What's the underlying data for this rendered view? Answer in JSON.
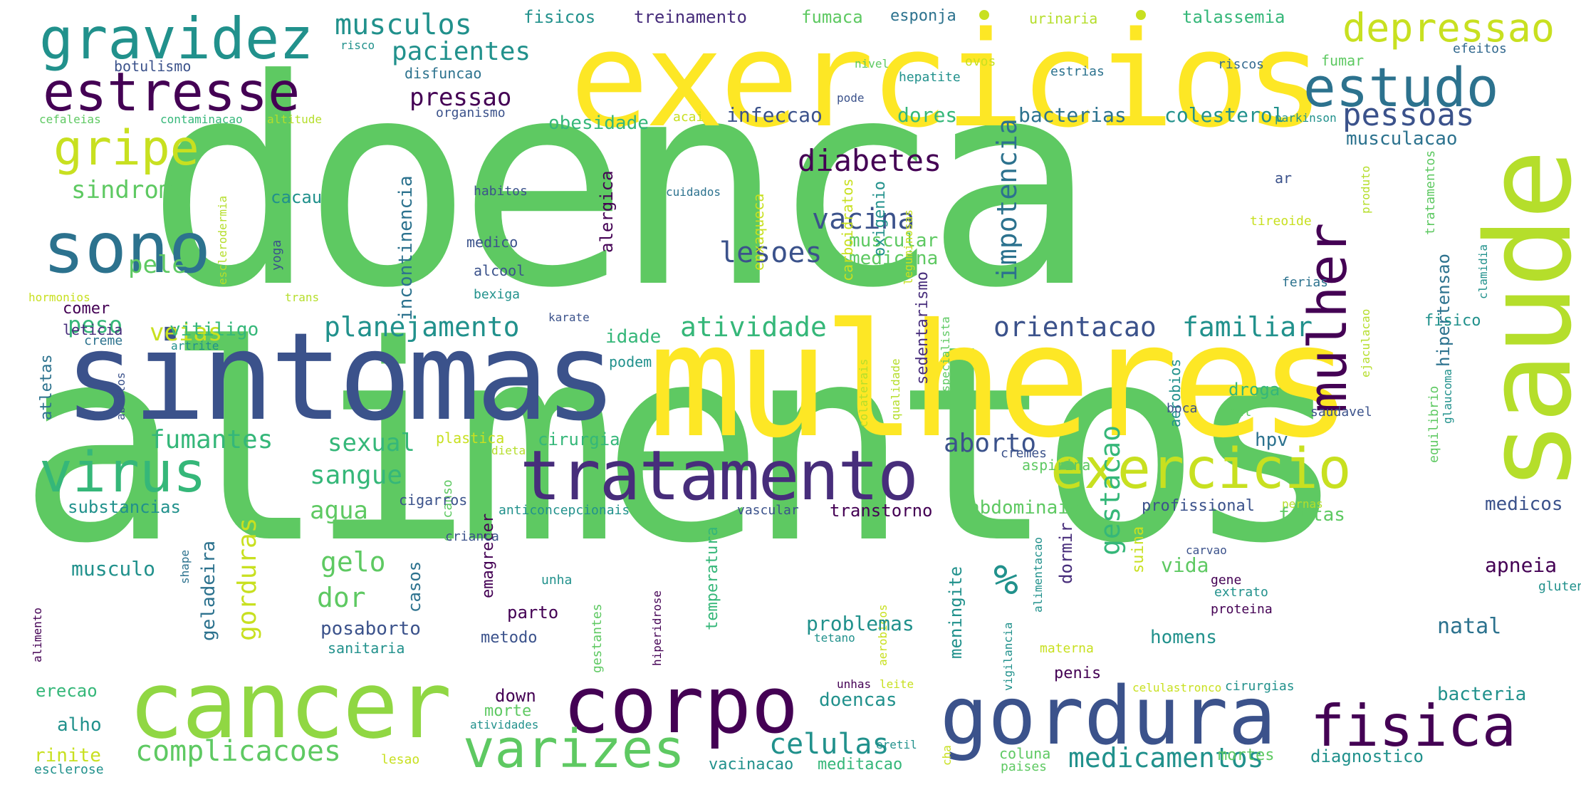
{
  "palette": {
    "background": "#ffffff",
    "colors": [
      "#5ec962",
      "#fde725",
      "#3b528b",
      "#440154",
      "#21918c",
      "#b5de2b",
      "#35b779",
      "#31688e",
      "#2c728e",
      "#472d7b",
      "#90d743",
      "#c8e020"
    ]
  },
  "words": [
    {
      "id": "w0",
      "text": "doenca"
    },
    {
      "id": "w1",
      "text": "alimentos"
    },
    {
      "id": "w2",
      "text": "mulheres"
    },
    {
      "id": "w3",
      "text": "exercicios"
    },
    {
      "id": "w4",
      "text": "sintomas"
    },
    {
      "id": "w5",
      "text": "saude"
    },
    {
      "id": "w6",
      "text": "cancer"
    },
    {
      "id": "w7",
      "text": "gordura"
    },
    {
      "id": "w8",
      "text": "tratamento"
    },
    {
      "id": "w9",
      "text": "corpo"
    },
    {
      "id": "w10",
      "text": "gravidez"
    },
    {
      "id": "w11",
      "text": "sono"
    },
    {
      "id": "w12",
      "text": "estresse"
    },
    {
      "id": "w13",
      "text": "fisica"
    },
    {
      "id": "w14",
      "text": "virus"
    },
    {
      "id": "w15",
      "text": "exercicio"
    },
    {
      "id": "w16",
      "text": "varizes"
    },
    {
      "id": "w17",
      "text": "estudo"
    },
    {
      "id": "w18",
      "text": "mulher"
    },
    {
      "id": "w19",
      "text": "gripe"
    },
    {
      "id": "w20",
      "text": "depressao"
    },
    {
      "id": "w21",
      "text": "%"
    },
    {
      "id": "w22",
      "text": "complicacoes"
    },
    {
      "id": "w23",
      "text": "medicamentos"
    },
    {
      "id": "w24",
      "text": "celulas"
    },
    {
      "id": "w25",
      "text": "planejamento"
    },
    {
      "id": "w26",
      "text": "orientacao"
    },
    {
      "id": "w27",
      "text": "familiar"
    },
    {
      "id": "w28",
      "text": "diabetes"
    },
    {
      "id": "w29",
      "text": "vacina"
    },
    {
      "id": "w30",
      "text": "atividade"
    },
    {
      "id": "w31",
      "text": "fumantes"
    },
    {
      "id": "w32",
      "text": "sexual"
    },
    {
      "id": "w33",
      "text": "sangue"
    },
    {
      "id": "w34",
      "text": "aborto"
    },
    {
      "id": "w35",
      "text": "pessoas"
    },
    {
      "id": "w36",
      "text": "pressao"
    },
    {
      "id": "w37",
      "text": "musculos"
    },
    {
      "id": "w38",
      "text": "pacientes"
    },
    {
      "id": "w39",
      "text": "sindrome"
    },
    {
      "id": "w40",
      "text": "lesoes"
    },
    {
      "id": "w41",
      "text": "impotencia"
    },
    {
      "id": "w42",
      "text": "gestacao"
    },
    {
      "id": "w43",
      "text": "gorduras"
    },
    {
      "id": "w44",
      "text": "gelo"
    },
    {
      "id": "w45",
      "text": "dor"
    },
    {
      "id": "w46",
      "text": "agua"
    },
    {
      "id": "w47",
      "text": "pele"
    },
    {
      "id": "w48",
      "text": "veias"
    },
    {
      "id": "w49",
      "text": "peso"
    },
    {
      "id": "w50",
      "text": "obesidade"
    },
    {
      "id": "w51",
      "text": "colesterol"
    },
    {
      "id": "w52",
      "text": "bacterias"
    },
    {
      "id": "w53",
      "text": "musculacao"
    },
    {
      "id": "w54",
      "text": "incontinencia"
    },
    {
      "id": "w55",
      "text": "infeccao"
    },
    {
      "id": "w56",
      "text": "dores"
    },
    {
      "id": "w57",
      "text": "vitiligo"
    },
    {
      "id": "w58",
      "text": "idade"
    },
    {
      "id": "w59",
      "text": "medicina"
    },
    {
      "id": "w60",
      "text": "muscular"
    },
    {
      "id": "w61",
      "text": "fisicos"
    },
    {
      "id": "w62",
      "text": "treinamento"
    },
    {
      "id": "w63",
      "text": "fumaca"
    },
    {
      "id": "w64",
      "text": "esponja"
    },
    {
      "id": "w65",
      "text": "urinaria"
    },
    {
      "id": "w66",
      "text": "talassemia"
    },
    {
      "id": "w67",
      "text": "risco"
    },
    {
      "id": "w68",
      "text": "disfuncao"
    },
    {
      "id": "w69",
      "text": "nivel"
    },
    {
      "id": "w70",
      "text": "hepatite"
    },
    {
      "id": "w71",
      "text": "estrias"
    },
    {
      "id": "w72",
      "text": "riscos"
    },
    {
      "id": "w73",
      "text": "fumar"
    },
    {
      "id": "w74",
      "text": "efeitos"
    },
    {
      "id": "w75",
      "text": "botulismo"
    },
    {
      "id": "w76",
      "text": "ovos"
    },
    {
      "id": "w77",
      "text": "pode"
    },
    {
      "id": "w78",
      "text": "organismo"
    },
    {
      "id": "w79",
      "text": "cefaleias"
    },
    {
      "id": "w80",
      "text": "contaminacao"
    },
    {
      "id": "w81",
      "text": "altitude"
    },
    {
      "id": "w82",
      "text": "acai"
    },
    {
      "id": "w83",
      "text": "parkinson"
    },
    {
      "id": "w84",
      "text": "alergica"
    },
    {
      "id": "w85",
      "text": "enxaqueca"
    },
    {
      "id": "w86",
      "text": "carboidratos"
    },
    {
      "id": "w87",
      "text": "oxigenio"
    },
    {
      "id": "w88",
      "text": "sedentarismo"
    },
    {
      "id": "w89",
      "text": "leguminosas"
    },
    {
      "id": "w90",
      "text": "cacau"
    },
    {
      "id": "w91",
      "text": "habitos"
    },
    {
      "id": "w92",
      "text": "cuidados"
    },
    {
      "id": "w93",
      "text": "tireoide"
    },
    {
      "id": "w94",
      "text": "ar"
    },
    {
      "id": "w95",
      "text": "produto"
    },
    {
      "id": "w96",
      "text": "tratamentos"
    },
    {
      "id": "w97",
      "text": "hipertensao"
    },
    {
      "id": "w98",
      "text": "clamidia"
    },
    {
      "id": "w99",
      "text": "medico"
    },
    {
      "id": "w100",
      "text": "alcool"
    },
    {
      "id": "w101",
      "text": "bexiga"
    },
    {
      "id": "w102",
      "text": "esclerodermia"
    },
    {
      "id": "w103",
      "text": "yoga"
    },
    {
      "id": "w104",
      "text": "trans"
    },
    {
      "id": "w105",
      "text": "hormonios"
    },
    {
      "id": "w106",
      "text": "comer"
    },
    {
      "id": "w107",
      "text": "leticia"
    },
    {
      "id": "w108",
      "text": "ferias"
    },
    {
      "id": "w109",
      "text": "ejaculacao"
    },
    {
      "id": "w110",
      "text": "especialista"
    },
    {
      "id": "w111",
      "text": "fisico"
    },
    {
      "id": "w112",
      "text": "podem"
    },
    {
      "id": "w113",
      "text": "karate"
    },
    {
      "id": "w114",
      "text": "creme"
    },
    {
      "id": "w115",
      "text": "artrite"
    },
    {
      "id": "w116",
      "text": "atletas"
    },
    {
      "id": "w117",
      "text": "abortos"
    },
    {
      "id": "w118",
      "text": "plastica"
    },
    {
      "id": "w119",
      "text": "dieta"
    },
    {
      "id": "w120",
      "text": "cirurgia"
    },
    {
      "id": "w121",
      "text": "hpv"
    },
    {
      "id": "w122",
      "text": "aerobios"
    },
    {
      "id": "w123",
      "text": "droga"
    },
    {
      "id": "w124",
      "text": "hdl"
    },
    {
      "id": "w125",
      "text": "boca"
    },
    {
      "id": "w126",
      "text": "saudavel"
    },
    {
      "id": "w127",
      "text": "equilibrio"
    },
    {
      "id": "w128",
      "text": "glaucoma"
    },
    {
      "id": "w129",
      "text": "qualidade"
    },
    {
      "id": "w130",
      "text": "colaterais"
    },
    {
      "id": "w131",
      "text": "cremes"
    },
    {
      "id": "w132",
      "text": "aspirina"
    },
    {
      "id": "w133",
      "text": "substancias"
    },
    {
      "id": "w134",
      "text": "descanso"
    },
    {
      "id": "w135",
      "text": "cigarros"
    },
    {
      "id": "w136",
      "text": "anticoncepcionais"
    },
    {
      "id": "w137",
      "text": "emagrecer"
    },
    {
      "id": "w138",
      "text": "abdominais"
    },
    {
      "id": "w139",
      "text": "profissional"
    },
    {
      "id": "w140",
      "text": "pernas"
    },
    {
      "id": "w141",
      "text": "frutas"
    },
    {
      "id": "w142",
      "text": "medicos"
    },
    {
      "id": "w143",
      "text": "vascular"
    },
    {
      "id": "w144",
      "text": "transtorno"
    },
    {
      "id": "w145",
      "text": "crianca"
    },
    {
      "id": "w146",
      "text": "geladeira"
    },
    {
      "id": "w147",
      "text": "temperatura"
    },
    {
      "id": "w148",
      "text": "suina"
    },
    {
      "id": "w149",
      "text": "carvao"
    },
    {
      "id": "w150",
      "text": "musculo"
    },
    {
      "id": "w151",
      "text": "shape"
    },
    {
      "id": "w152",
      "text": "casos"
    },
    {
      "id": "w153",
      "text": "hiperidrose"
    },
    {
      "id": "w154",
      "text": "unha"
    },
    {
      "id": "w155",
      "text": "gestantes"
    },
    {
      "id": "w156",
      "text": "aerobicos"
    },
    {
      "id": "w157",
      "text": "meningite"
    },
    {
      "id": "w158",
      "text": "vigilancia"
    },
    {
      "id": "w159",
      "text": "alimentacao"
    },
    {
      "id": "w160",
      "text": "dormir"
    },
    {
      "id": "w161",
      "text": "vida"
    },
    {
      "id": "w162",
      "text": "gene"
    },
    {
      "id": "w163",
      "text": "extrato"
    },
    {
      "id": "w164",
      "text": "proteina"
    },
    {
      "id": "w165",
      "text": "apneia"
    },
    {
      "id": "w166",
      "text": "gluten"
    },
    {
      "id": "w167",
      "text": "alimento"
    },
    {
      "id": "w168",
      "text": "parto"
    },
    {
      "id": "w169",
      "text": "posaborto"
    },
    {
      "id": "w170",
      "text": "sanitaria"
    },
    {
      "id": "w171",
      "text": "metodo"
    },
    {
      "id": "w172",
      "text": "problemas"
    },
    {
      "id": "w173",
      "text": "tetano"
    },
    {
      "id": "w174",
      "text": "homens"
    },
    {
      "id": "w175",
      "text": "natal"
    },
    {
      "id": "w176",
      "text": "materna"
    },
    {
      "id": "w177",
      "text": "penis"
    },
    {
      "id": "w178",
      "text": "erecao"
    },
    {
      "id": "w179",
      "text": "alho"
    },
    {
      "id": "w180",
      "text": "down"
    },
    {
      "id": "w181",
      "text": "morte"
    },
    {
      "id": "w182",
      "text": "doencas"
    },
    {
      "id": "w183",
      "text": "unhas"
    },
    {
      "id": "w184",
      "text": "leite"
    },
    {
      "id": "w185",
      "text": "celulastronco"
    },
    {
      "id": "w186",
      "text": "cirurgias"
    },
    {
      "id": "w187",
      "text": "bacteria"
    },
    {
      "id": "w188",
      "text": "atividades"
    },
    {
      "id": "w189",
      "text": "eretil"
    },
    {
      "id": "w190",
      "text": "cha"
    },
    {
      "id": "w191",
      "text": "rinite"
    },
    {
      "id": "w192",
      "text": "lesao"
    },
    {
      "id": "w193",
      "text": "coluna"
    },
    {
      "id": "w194",
      "text": "diagnostico"
    },
    {
      "id": "w195",
      "text": "esclerose"
    },
    {
      "id": "w196",
      "text": "vacinacao"
    },
    {
      "id": "w197",
      "text": "meditacao"
    },
    {
      "id": "w198",
      "text": "paises"
    },
    {
      "id": "w199",
      "text": "mortes"
    }
  ]
}
